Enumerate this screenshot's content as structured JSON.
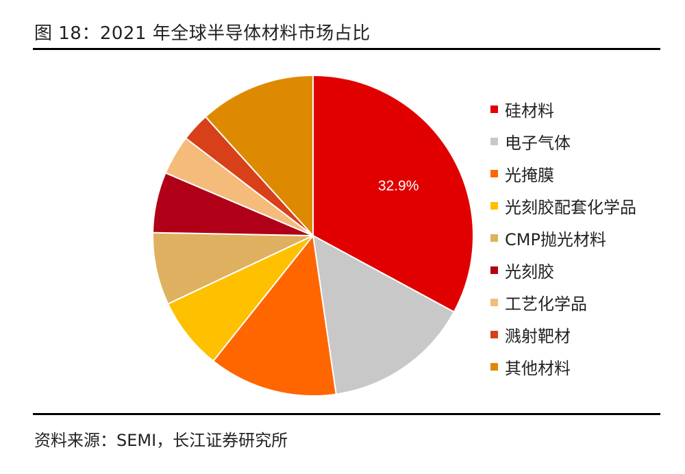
{
  "header": {
    "title": "图 18：2021 年全球半导体材料市场占比"
  },
  "footer": {
    "source": "资料来源：SEMI，长江证券研究所"
  },
  "chart_data": {
    "type": "pie",
    "title": "2021 年全球半导体材料市场占比",
    "legend_position": "right",
    "slices": [
      {
        "label": "硅材料",
        "value": 32.9,
        "color": "#E00000",
        "data_label": "32.9%"
      },
      {
        "label": "电子气体",
        "value": 14.8,
        "color": "#C8C8C8",
        "data_label": ""
      },
      {
        "label": "光掩膜",
        "value": 13.0,
        "color": "#FF6600",
        "data_label": ""
      },
      {
        "label": "光刻胶配套化学品",
        "value": 7.3,
        "color": "#FFC000",
        "data_label": ""
      },
      {
        "label": "CMP抛光材料",
        "value": 7.3,
        "color": "#DFB060",
        "data_label": ""
      },
      {
        "label": "光刻胶",
        "value": 6.1,
        "color": "#B00018",
        "data_label": ""
      },
      {
        "label": "工艺化学品",
        "value": 4.0,
        "color": "#F5BB7A",
        "data_label": ""
      },
      {
        "label": "溅射靶材",
        "value": 2.9,
        "color": "#D8401A",
        "data_label": ""
      },
      {
        "label": "其他材料",
        "value": 11.7,
        "color": "#DD8A00",
        "data_label": ""
      }
    ]
  }
}
